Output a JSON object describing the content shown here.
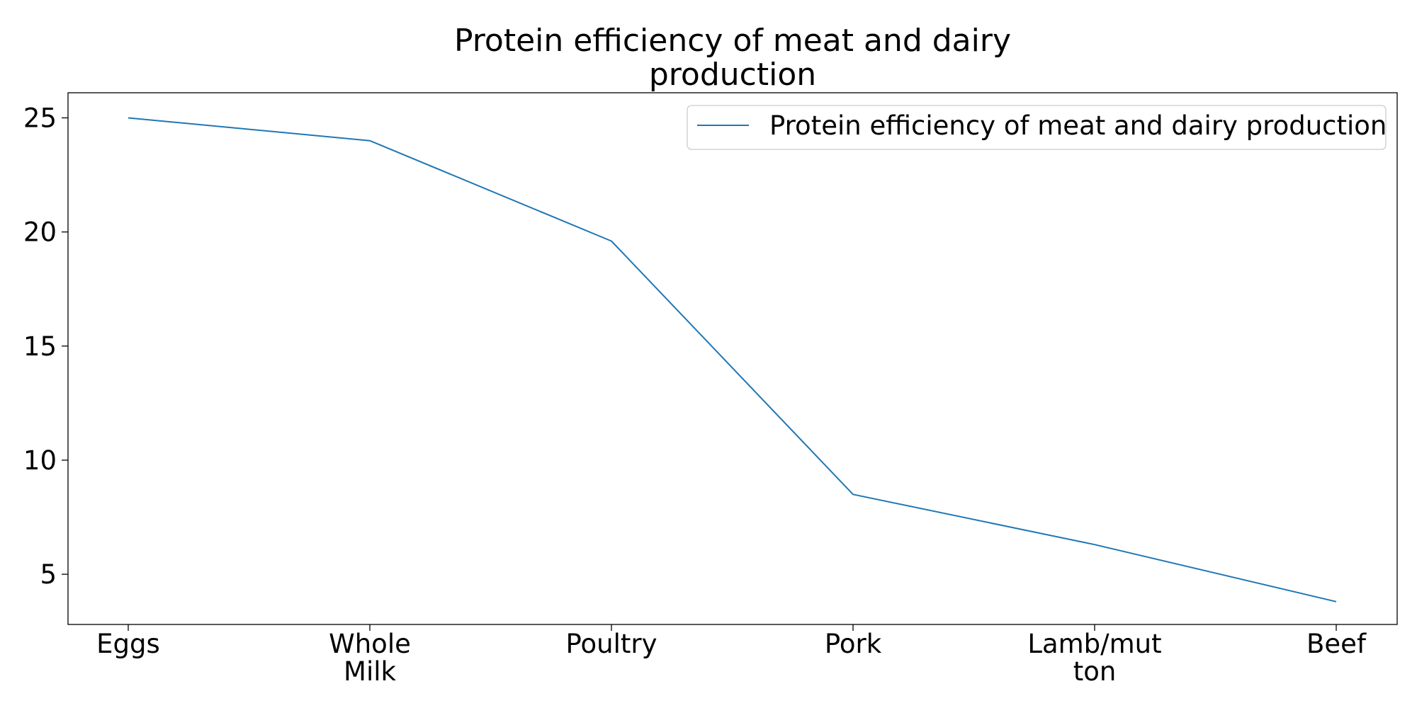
{
  "chart_data": {
    "type": "line",
    "title_lines": [
      "Protein efficiency of meat and dairy",
      "production"
    ],
    "xlabel": "",
    "ylabel": "",
    "categories": [
      [
        "Eggs"
      ],
      [
        "Whole",
        "Milk"
      ],
      [
        "Poultry"
      ],
      [
        "Pork"
      ],
      [
        "Lamb/mut",
        "ton"
      ],
      [
        "Beef"
      ]
    ],
    "series": [
      {
        "name": "Protein efficiency of meat and dairy production",
        "values": [
          25.0,
          24.0,
          19.6,
          8.5,
          6.3,
          3.8
        ],
        "color": "#1f77b4"
      }
    ],
    "yticks": [
      5,
      10,
      15,
      20,
      25
    ],
    "ylim": [
      2.8,
      26.1
    ],
    "grid": false,
    "legend_position": "top-right"
  }
}
